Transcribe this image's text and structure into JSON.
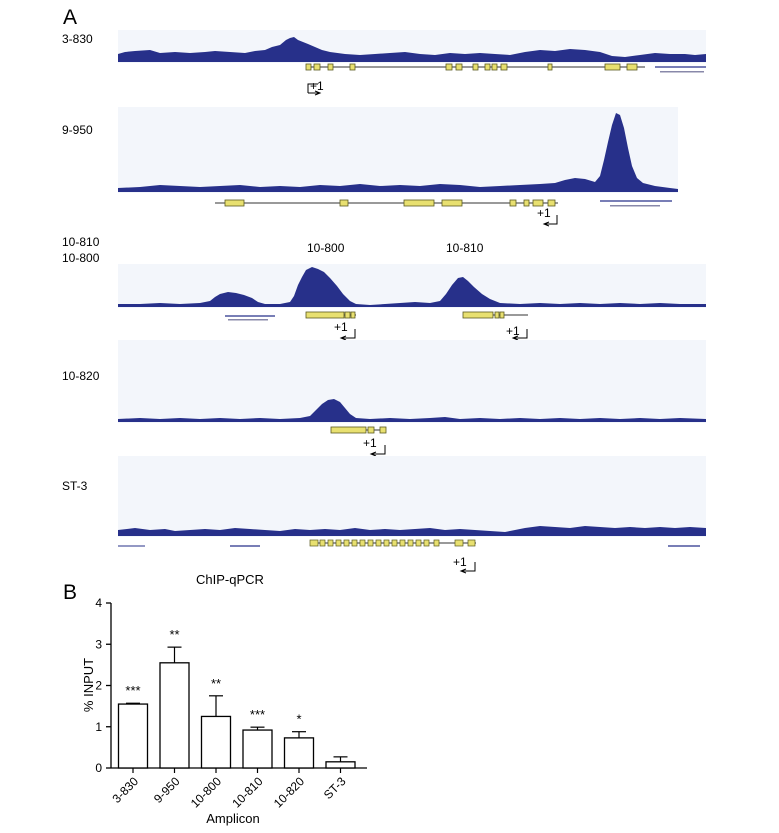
{
  "panel_a": {
    "letter": "A",
    "tracks": [
      {
        "label": "3-830"
      },
      {
        "label": "9-950"
      },
      {
        "label": "10-810",
        "label2": "10-800"
      },
      {
        "label": "10-820"
      },
      {
        "label": "ST-3"
      }
    ],
    "peak_labels": [
      "10-800",
      "10-810"
    ],
    "tss_label": "+1",
    "colors": {
      "signal": "#27308a",
      "background": "#f3f6fb",
      "exon": "#e8e070",
      "exon_stroke": "#5a5a20"
    }
  },
  "panel_b": {
    "letter": "B"
  },
  "chart_data": {
    "type": "bar",
    "title": "ChIP-qPCR",
    "xlabel": "Amplicon",
    "ylabel": "% INPUT",
    "ylim": [
      0,
      4
    ],
    "yticks": [
      0,
      1,
      2,
      3,
      4
    ],
    "categories": [
      "3-830",
      "9-950",
      "10-800",
      "10-810",
      "10-820",
      "ST-3"
    ],
    "values": [
      1.55,
      2.55,
      1.25,
      0.92,
      0.73,
      0.15
    ],
    "errors": [
      0.02,
      0.38,
      0.5,
      0.07,
      0.15,
      0.12
    ],
    "significance": [
      "***",
      "**",
      "**",
      "***",
      "*",
      ""
    ],
    "bar_fill": "#ffffff",
    "bar_stroke": "#000000",
    "grid": false
  }
}
